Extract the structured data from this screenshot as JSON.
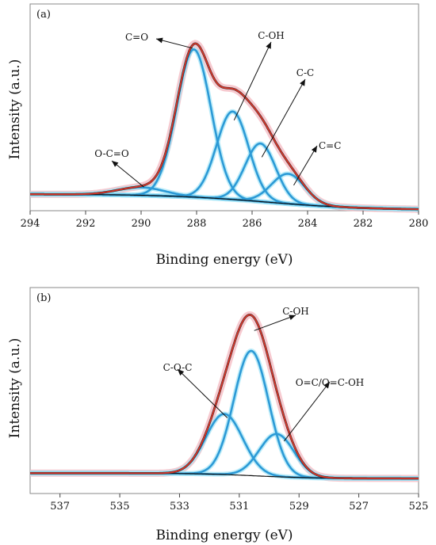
{
  "chart_data": [
    {
      "type": "line",
      "panel_tag": "(a)",
      "xlabel": "Binding energy (eV)",
      "ylabel": "Intensity (a.u.)",
      "xlim": [
        294,
        280
      ],
      "x_reversed": true,
      "xticks": [
        294,
        292,
        290,
        288,
        286,
        284,
        282,
        280
      ],
      "ylim": [
        0,
        1.08
      ],
      "y_ticks_shown": false,
      "grid": false,
      "baseline": {
        "y_left": 0.09,
        "y_right": 0.0,
        "center": 285.5,
        "width": 1.8
      },
      "components": [
        {
          "name": "O-C=O",
          "center": 290.0,
          "height": 0.045,
          "sigma": 0.85
        },
        {
          "name": "C=O",
          "center": 288.1,
          "height": 0.84,
          "sigma": 0.62
        },
        {
          "name": "C-OH",
          "center": 286.7,
          "height": 0.5,
          "sigma": 0.58
        },
        {
          "name": "C-C",
          "center": 285.7,
          "height": 0.33,
          "sigma": 0.55
        },
        {
          "name": "C=C",
          "center": 284.7,
          "height": 0.17,
          "sigma": 0.6
        }
      ],
      "annotations": [
        {
          "text": "C=O",
          "target": [
            288.15,
            0.92
          ]
        },
        {
          "text": "C-OH",
          "target": [
            286.65,
            0.51
          ]
        },
        {
          "text": "C-C",
          "target": [
            285.65,
            0.3
          ]
        },
        {
          "text": "C=C",
          "target": [
            284.5,
            0.14
          ]
        },
        {
          "text": "O-C=O",
          "target": [
            289.9,
            0.13
          ]
        }
      ]
    },
    {
      "type": "line",
      "panel_tag": "(b)",
      "xlabel": "Binding energy (eV)",
      "ylabel": "Intensity (a.u.)",
      "xlim": [
        538,
        525
      ],
      "x_reversed": true,
      "xticks": [
        537,
        535,
        533,
        531,
        529,
        527,
        525
      ],
      "ylim": [
        0,
        1.1
      ],
      "y_ticks_shown": false,
      "grid": false,
      "baseline": {
        "y_left": 0.03,
        "y_right": 0.0,
        "center": 530.5,
        "width": 1.0
      },
      "components": [
        {
          "name": "C-O-C",
          "center": 531.5,
          "height": 0.34,
          "sigma": 0.62
        },
        {
          "name": "C-OH",
          "center": 530.6,
          "height": 0.7,
          "sigma": 0.58
        },
        {
          "name": "O=C/O=C-OH",
          "center": 529.75,
          "height": 0.24,
          "sigma": 0.58
        }
      ],
      "annotations": [
        {
          "text": "C-OH",
          "target": [
            530.5,
            0.83
          ]
        },
        {
          "text": "C-O-C",
          "target": [
            531.4,
            0.34
          ]
        },
        {
          "text": "O=C/O=C-OH",
          "target": [
            529.5,
            0.21
          ]
        }
      ]
    }
  ]
}
